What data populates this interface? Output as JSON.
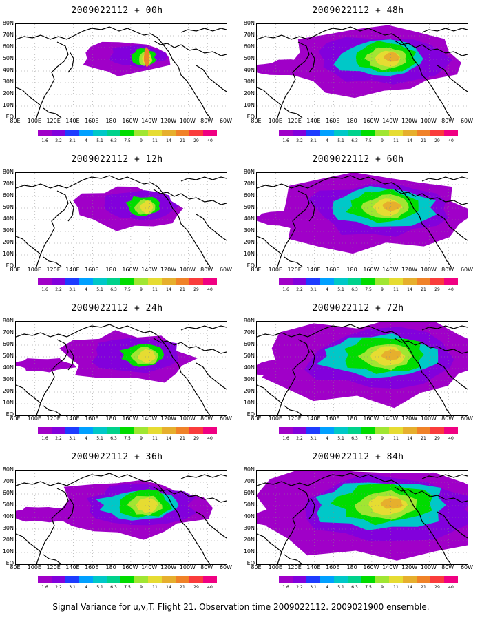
{
  "caption": "Signal Variance for u,v,T. Flight 21. Observation time 2009022112. 2009021900 ensemble.",
  "lat_labels": [
    "80N",
    "70N",
    "60N",
    "50N",
    "40N",
    "30N",
    "20N",
    "10N",
    "EQ"
  ],
  "lon_labels": [
    "80E",
    "100E",
    "120E",
    "140E",
    "160E",
    "180",
    "160W",
    "140W",
    "120W",
    "100W",
    "80W",
    "60W"
  ],
  "colorbar": {
    "levels": [
      "1.6",
      "2.2",
      "3.1",
      "4",
      "5.1",
      "6.3",
      "7.5",
      "9",
      "11",
      "14",
      "21",
      "29",
      "40"
    ],
    "colors": [
      "#a000c8",
      "#8200dc",
      "#1e3cff",
      "#00a0ff",
      "#00c8c8",
      "#00d28c",
      "#00dc00",
      "#a0e632",
      "#e6dc32",
      "#e6af2d",
      "#f08228",
      "#fa3c3c",
      "#f00082"
    ]
  },
  "panels": [
    {
      "title": "2009022112 + 00h",
      "intensity": 0
    },
    {
      "title": "2009022112 + 48h",
      "intensity": 4
    },
    {
      "title": "2009022112 + 12h",
      "intensity": 1
    },
    {
      "title": "2009022112 + 60h",
      "intensity": 5
    },
    {
      "title": "2009022112 + 24h",
      "intensity": 2
    },
    {
      "title": "2009022112 + 72h",
      "intensity": 6
    },
    {
      "title": "2009022112 + 36h",
      "intensity": 3
    },
    {
      "title": "2009022112 + 84h",
      "intensity": 7
    }
  ]
}
